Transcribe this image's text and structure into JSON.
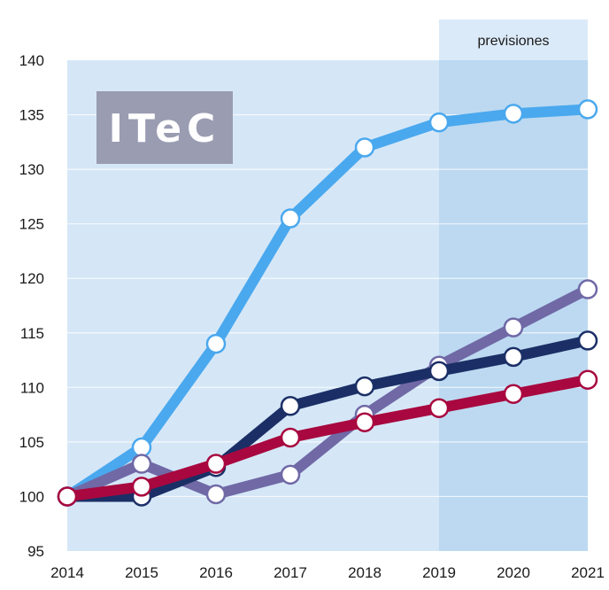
{
  "logo": {
    "text": "ITeC",
    "bg_color": "#9a9cb2"
  },
  "forecast": {
    "label": "previsiones",
    "from": 2019,
    "to": 2021,
    "color": "#bcd9f1"
  },
  "chart_data": {
    "type": "line",
    "title": "",
    "xlabel": "",
    "ylabel": "",
    "x": [
      2014,
      2015,
      2016,
      2017,
      2018,
      2019,
      2020,
      2021
    ],
    "xlim": [
      2014,
      2021
    ],
    "ylim": [
      95,
      140
    ],
    "yticks": [
      95,
      100,
      105,
      110,
      115,
      120,
      125,
      130,
      135,
      140
    ],
    "grid": true,
    "legend": "none",
    "plot_bg_color": "#d5e7f7",
    "series": [
      {
        "color": "#4aa8ee",
        "values": [
          100,
          104.5,
          114,
          125.5,
          132,
          134.3,
          135.1,
          135.5
        ]
      },
      {
        "color": "#7069a6",
        "values": [
          100,
          103,
          100.2,
          102,
          107.5,
          112,
          115.5,
          119
        ]
      },
      {
        "color": "#1b2f66",
        "values": [
          100,
          100,
          102.7,
          108.3,
          110.1,
          111.5,
          112.8,
          114.3
        ]
      },
      {
        "color": "#a8083f",
        "values": [
          100,
          100.9,
          103,
          105.4,
          106.8,
          108.1,
          109.4,
          110.7
        ]
      }
    ]
  }
}
